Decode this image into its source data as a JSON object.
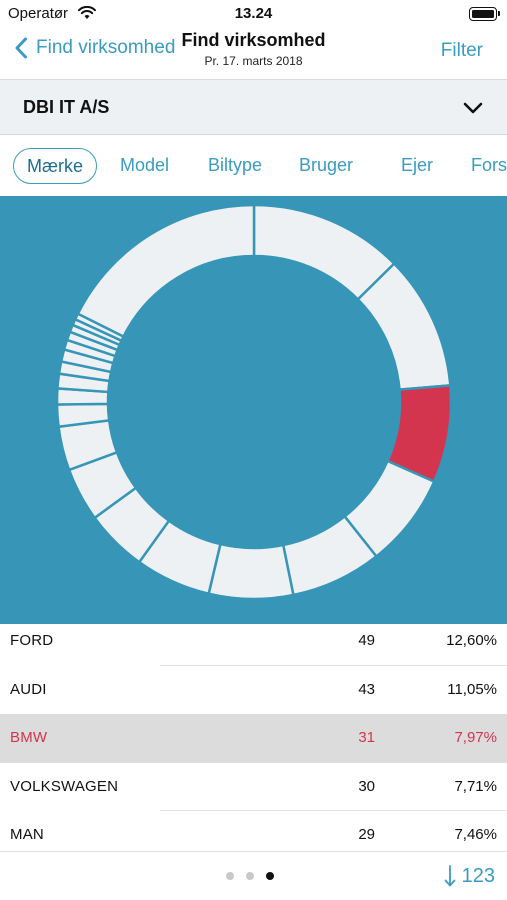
{
  "status_bar": {
    "carrier": "Operatør",
    "time": "13.24"
  },
  "nav": {
    "back_label": "Find virksomhed",
    "title": "Find virksomhed",
    "subtitle": "Pr. 17. marts 2018",
    "filter_label": "Filter"
  },
  "company": {
    "name": "DBI IT A/S"
  },
  "tabs": [
    "Mærke",
    "Model",
    "Biltype",
    "Bruger",
    "Ejer",
    "Fors"
  ],
  "active_tab": 0,
  "colors": {
    "accent": "#3b9bc0",
    "chart_bg": "#3796b8",
    "segment": "#eef1f3",
    "highlight": "#d3354f"
  },
  "chart_data": {
    "type": "pie",
    "donut": true,
    "highlight_index": 2,
    "slices": [
      {
        "label": "FORD",
        "count": 49,
        "pct": 12.6
      },
      {
        "label": "AUDI",
        "count": 43,
        "pct": 11.05
      },
      {
        "label": "BMW",
        "count": 31,
        "pct": 7.97
      },
      {
        "label": "VOLKSWAGEN",
        "count": 30,
        "pct": 7.71
      },
      {
        "label": "MAN",
        "count": 29,
        "pct": 7.46
      },
      {
        "label": "",
        "count": 27,
        "pct": 6.9
      },
      {
        "label": "",
        "count": 24,
        "pct": 6.2
      },
      {
        "label": "",
        "count": 20,
        "pct": 5.1
      },
      {
        "label": "",
        "count": 17,
        "pct": 4.4
      },
      {
        "label": "",
        "count": 14,
        "pct": 3.6
      },
      {
        "label": "",
        "count": 7,
        "pct": 1.8
      },
      {
        "label": "",
        "count": 5,
        "pct": 1.3
      },
      {
        "label": "",
        "count": 5,
        "pct": 1.2
      },
      {
        "label": "",
        "count": 4,
        "pct": 1.0
      },
      {
        "label": "",
        "count": 4,
        "pct": 1.0
      },
      {
        "label": "",
        "count": 3,
        "pct": 0.8
      },
      {
        "label": "",
        "count": 3,
        "pct": 0.7
      },
      {
        "label": "",
        "count": 2,
        "pct": 0.6
      },
      {
        "label": "",
        "count": 2,
        "pct": 0.5
      },
      {
        "label": "",
        "count": 2,
        "pct": 0.5
      }
    ],
    "remainder_segment": {
      "pct": 17.6
    }
  },
  "table": {
    "rows": [
      {
        "name": "FORD",
        "count": "49",
        "pct": "12,60%",
        "selected": false
      },
      {
        "name": "AUDI",
        "count": "43",
        "pct": "11,05%",
        "selected": false
      },
      {
        "name": "BMW",
        "count": "31",
        "pct": "7,97%",
        "selected": true
      },
      {
        "name": "VOLKSWAGEN",
        "count": "30",
        "pct": "7,71%",
        "selected": false
      },
      {
        "name": "MAN",
        "count": "29",
        "pct": "7,46%",
        "selected": false
      }
    ]
  },
  "bottom": {
    "page_count": 3,
    "active_page": 2,
    "sort_label": "123",
    "sort_icon": "arrow-down-icon"
  }
}
